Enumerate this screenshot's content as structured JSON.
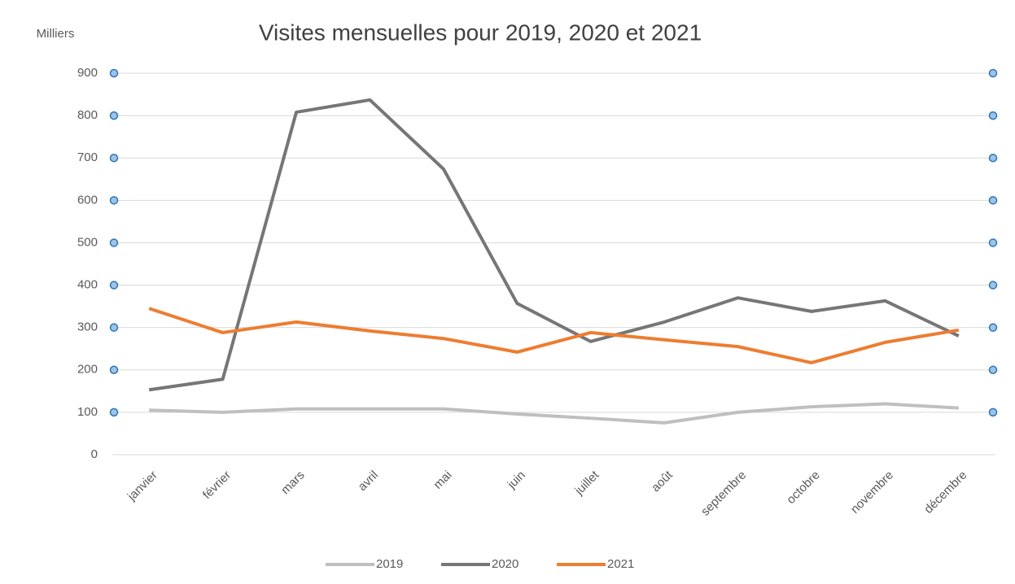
{
  "chart_data": {
    "type": "line",
    "title": "Visites mensuelles pour 2019, 2020 et 2021",
    "y_unit": "Milliers",
    "categories": [
      "janvier",
      "février",
      "mars",
      "avril",
      "mai",
      "juin",
      "juillet",
      "août",
      "septembre",
      "octobre",
      "novembre",
      "décembre"
    ],
    "series": [
      {
        "name": "2019",
        "color": "#bfbfbf",
        "values": [
          105,
          100,
          108,
          108,
          108,
          96,
          86,
          75,
          100,
          113,
          120,
          110
        ]
      },
      {
        "name": "2020",
        "color": "#767676",
        "values": [
          153,
          178,
          808,
          837,
          674,
          357,
          267,
          313,
          370,
          338,
          363,
          280
        ]
      },
      {
        "name": "2021",
        "color": "#ed7d31",
        "values": [
          345,
          288,
          313,
          292,
          274,
          242,
          288,
          271,
          255,
          217,
          265,
          294
        ]
      }
    ],
    "ylim": [
      0,
      900
    ],
    "yticks": [
      0,
      100,
      200,
      300,
      400,
      500,
      600,
      700,
      800,
      900
    ],
    "grid": true,
    "legend": "bottom"
  }
}
